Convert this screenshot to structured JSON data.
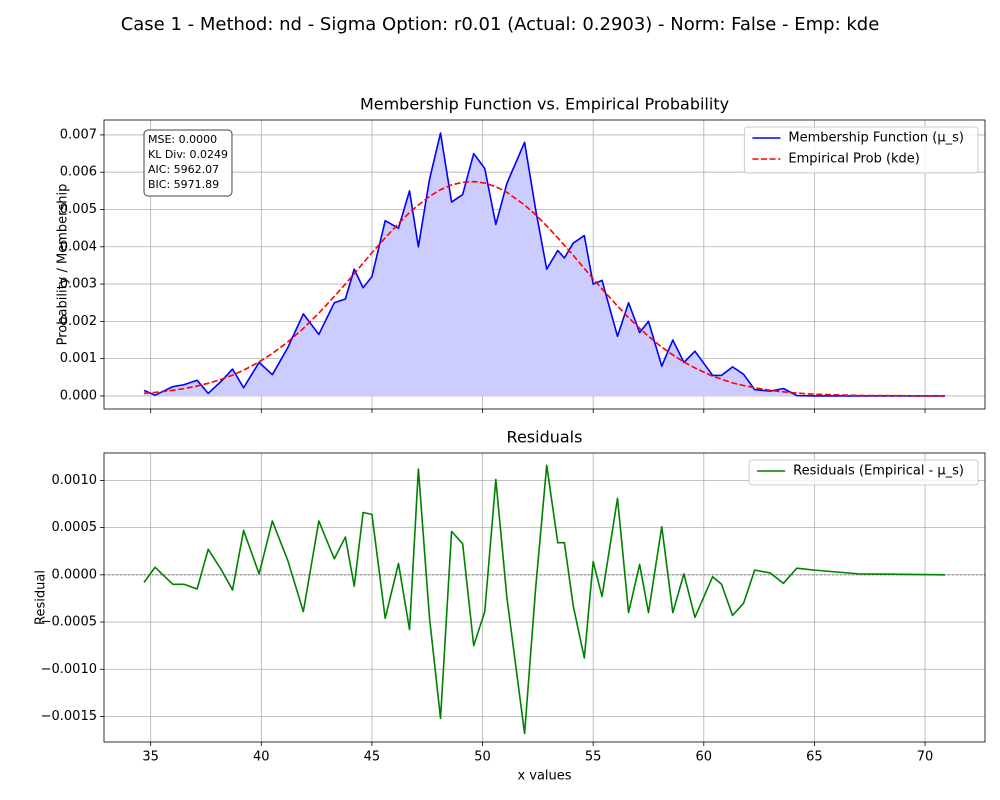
{
  "suptitle": "Case 1 - Method: nd - Sigma Option: r0.01 (Actual: 0.2903) - Norm: False - Emp: kde",
  "chart_data": [
    {
      "type": "line",
      "title": "Membership Function vs. Empirical Probability",
      "ylabel": "Probability / Membership",
      "x": [
        34.7,
        35.2,
        36,
        36.5,
        37.1,
        37.6,
        38.2,
        38.7,
        39.2,
        39.9,
        40.5,
        41.2,
        41.9,
        42.6,
        43.3,
        43.8,
        44.2,
        44.6,
        45,
        45.6,
        46.2,
        46.7,
        47.1,
        47.6,
        48.1,
        48.6,
        49.1,
        49.6,
        50.1,
        50.6,
        51.1,
        51.9,
        52.4,
        52.9,
        53.4,
        53.7,
        54.1,
        54.6,
        55,
        55.4,
        56.1,
        56.6,
        57.1,
        57.5,
        58.1,
        58.6,
        59.1,
        59.6,
        60.4,
        60.8,
        61.3,
        61.8,
        62.3,
        63,
        63.6,
        64.2,
        65,
        67,
        70.9
      ],
      "series": [
        {
          "name": "Membership Function (μ_s)",
          "color": "#0000ff",
          "style": "solid",
          "fill": "#ccccff",
          "values": [
            0.00015,
            2e-05,
            0.00025,
            0.0003,
            0.00042,
            7e-05,
            0.0004,
            0.00072,
            0.00022,
            0.0009,
            0.00057,
            0.0013,
            0.0022,
            0.00165,
            0.0025,
            0.0026,
            0.0034,
            0.0029,
            0.0032,
            0.0047,
            0.0045,
            0.0055,
            0.004,
            0.0058,
            0.00705,
            0.0052,
            0.0054,
            0.0065,
            0.0061,
            0.0046,
            0.0057,
            0.0068,
            0.005,
            0.0034,
            0.0039,
            0.0037,
            0.0041,
            0.0043,
            0.003,
            0.0031,
            0.0016,
            0.0025,
            0.0017,
            0.002,
            0.0008,
            0.0015,
            0.0009,
            0.0012,
            0.00055,
            0.00055,
            0.00078,
            0.00058,
            0.00017,
            0.00013,
            0.0002,
            1e-05,
            0,
            0,
            0
          ]
        },
        {
          "name": "Empirical Prob (kde)",
          "color": "#ff0000",
          "style": "dashed",
          "values": [
            7.2e-05,
            9.6e-05,
            0.00015,
            0.000196,
            0.000266,
            0.000339,
            0.000447,
            0.000558,
            0.000689,
            0.00091,
            0.00114,
            0.00145,
            0.00181,
            0.00222,
            0.00267,
            0.003,
            0.00328,
            0.00356,
            0.00384,
            0.00424,
            0.00462,
            0.00492,
            0.00512,
            0.00535,
            0.00553,
            0.00566,
            0.00573,
            0.00575,
            0.00571,
            0.00561,
            0.00546,
            0.00512,
            0.00486,
            0.00456,
            0.00424,
            0.00404,
            0.00377,
            0.00342,
            0.00314,
            0.00287,
            0.00241,
            0.0021,
            0.00181,
            0.0016,
            0.00131,
            0.0011,
            0.00091,
            0.00075,
            0.00053,
            0.00045,
            0.00035,
            0.00028,
            0.00022,
            0.00015,
            0.00011,
            7.6e-05,
            4.7e-05,
            1.3e-05,
            0
          ]
        }
      ],
      "xlim": [
        32.89,
        72.71
      ],
      "xticks": [
        35,
        40,
        45,
        50,
        55,
        60,
        65,
        70
      ],
      "xticklabels": false,
      "ylim": [
        -0.00035,
        0.0074
      ],
      "yticks": [
        {
          "value": 0,
          "label": "0.000"
        },
        0.001,
        0.002,
        0.003,
        0.004,
        0.005,
        0.006,
        0.007
      ],
      "grid": true,
      "legend": "upper right",
      "annotation": [
        "MSE: 0.0000",
        "KL Div: 0.0249",
        "AIC: 5962.07",
        "BIC: 5971.89"
      ]
    },
    {
      "type": "line",
      "title": "Residuals",
      "xlabel": "x values",
      "ylabel": "Residual",
      "x": [
        34.7,
        35.2,
        36,
        36.5,
        37.1,
        37.6,
        38.2,
        38.7,
        39.2,
        39.9,
        40.5,
        41.2,
        41.9,
        42.6,
        43.3,
        43.8,
        44.2,
        44.6,
        45,
        45.6,
        46.2,
        46.7,
        47.1,
        47.6,
        48.1,
        48.6,
        49.1,
        49.6,
        50.1,
        50.6,
        51.1,
        51.9,
        52.4,
        52.9,
        53.4,
        53.7,
        54.1,
        54.6,
        55,
        55.4,
        56.1,
        56.6,
        57.1,
        57.5,
        58.1,
        58.6,
        59.1,
        59.6,
        60.4,
        60.8,
        61.3,
        61.8,
        62.3,
        63,
        63.6,
        64.2,
        65,
        67,
        70.9
      ],
      "series": [
        {
          "name": "Residuals (Empirical - μ_s)",
          "color": "#008000",
          "style": "solid",
          "values": [
            -8e-05,
            8e-05,
            -0.0001,
            -0.0001,
            -0.00015,
            0.00027,
            5e-05,
            -0.00016,
            0.00047,
            1e-05,
            0.00057,
            0.00015,
            -0.00039,
            0.00057,
            0.00017,
            0.0004,
            -0.00012,
            0.00066,
            0.00064,
            -0.00046,
            0.00012,
            -0.00058,
            0.00112,
            -0.00045,
            -0.00152,
            0.00046,
            0.00033,
            -0.00075,
            -0.00039,
            0.00101,
            -0.00024,
            -0.00168,
            -0.00014,
            0.00116,
            0.00034,
            0.00034,
            -0.00033,
            -0.00088,
            0.00014,
            -0.00023,
            0.00081,
            -0.0004,
            0.00011,
            -0.0004,
            0.00051,
            -0.0004,
            1e-05,
            -0.00045,
            -2e-05,
            -0.0001,
            -0.00043,
            -0.0003,
            5e-05,
            2e-05,
            -9e-05,
            7e-05,
            5e-05,
            1e-05,
            0
          ]
        }
      ],
      "hline": 0,
      "xlim": [
        32.89,
        72.71
      ],
      "xticks": [
        35,
        40,
        45,
        50,
        55,
        60,
        65,
        70
      ],
      "xticklabels": true,
      "ylim": [
        -0.00177,
        0.00129
      ],
      "yticks": [
        {
          "value": -0.0015,
          "label": "−0.0015"
        },
        {
          "value": -0.001,
          "label": "−0.0010"
        },
        {
          "value": -0.0005,
          "label": "−0.0005"
        },
        {
          "value": 0,
          "label": "0.0000"
        },
        {
          "value": 0.0005,
          "label": "0.0005"
        },
        {
          "value": 0.001,
          "label": "0.0010"
        }
      ],
      "grid": true,
      "legend": "upper right"
    }
  ]
}
